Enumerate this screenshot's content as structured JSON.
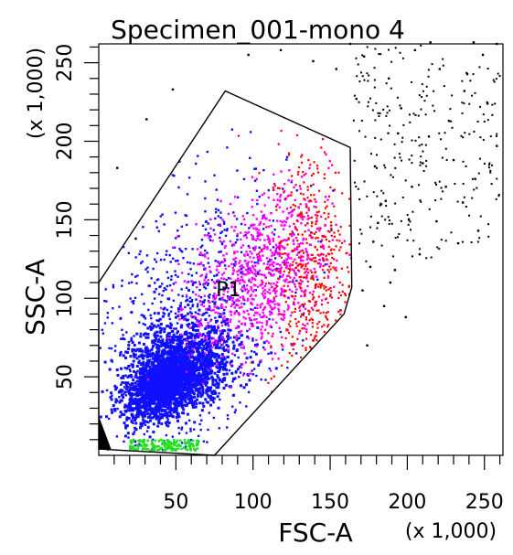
{
  "chart_data": {
    "type": "scatter",
    "title": "Specimen_001-mono 4",
    "xlabel": "FSC-A",
    "ylabel": "SSC-A",
    "x_multiplier_label": "(x 1,000)",
    "y_multiplier_label": "(x 1,000)",
    "xlim": [
      0,
      262
    ],
    "ylim": [
      0,
      262
    ],
    "x_ticks": [
      50,
      100,
      150,
      200,
      250
    ],
    "y_ticks": [
      50,
      100,
      150,
      200,
      250
    ],
    "x_tick_labels": [
      "50",
      "100",
      "150",
      "200",
      "250"
    ],
    "y_tick_labels": [
      "50",
      "100",
      "150",
      "200",
      "250"
    ],
    "minor_tick_step": 10,
    "grid": false,
    "gate": {
      "name": "P1",
      "label_position": [
        76,
        106
      ],
      "polygon": [
        [
          0,
          4
        ],
        [
          0,
          110
        ],
        [
          82,
          232
        ],
        [
          163,
          196
        ],
        [
          164,
          107
        ],
        [
          159,
          90
        ],
        [
          75,
          0
        ]
      ]
    },
    "series": [
      {
        "color": "#000000",
        "region": "outside gate, upper right",
        "points": [
          [
            172,
            254
          ],
          [
            188,
            240
          ],
          [
            205,
            258
          ],
          [
            221,
            246
          ],
          [
            237,
            232
          ],
          [
            249,
            255
          ],
          [
            196,
            221
          ],
          [
            214,
            203
          ],
          [
            230,
            188
          ],
          [
            244,
            176
          ],
          [
            258,
            197
          ],
          [
            179,
            184
          ],
          [
            186,
            162
          ],
          [
            203,
            171
          ],
          [
            219,
            149
          ],
          [
            233,
            135
          ],
          [
            208,
            128
          ],
          [
            192,
            118
          ],
          [
            178,
            136
          ],
          [
            171,
            105
          ],
          [
            185,
            95
          ],
          [
            199,
            88
          ],
          [
            174,
            70
          ],
          [
            181,
            148
          ],
          [
            227,
            213
          ],
          [
            252,
            224
          ],
          [
            236,
            161
          ],
          [
            167,
            227
          ],
          [
            154,
            246
          ],
          [
            139,
            251
          ],
          [
            118,
            258
          ],
          [
            97,
            255
          ],
          [
            31,
            214
          ],
          [
            48,
            233
          ],
          [
            12,
            183
          ],
          [
            24,
            138
          ],
          [
            194,
            205
          ],
          [
            210,
            186
          ],
          [
            225,
            171
          ],
          [
            246,
            143
          ],
          [
            201,
            150
          ],
          [
            189,
            110
          ],
          [
            176,
            120
          ],
          [
            163,
            262
          ],
          [
            258,
            262
          ],
          [
            243,
            263
          ],
          [
            215,
            263
          ]
        ]
      },
      {
        "color": "#1010ff",
        "region": "dense low-FSC core population",
        "points": []
      },
      {
        "color": "#ff00ff",
        "region": "mid cluster around P1",
        "points": []
      },
      {
        "color": "#ff0000",
        "region": "high-FSC band inside gate",
        "points": []
      },
      {
        "color": "#22dd22",
        "region": "bottom-left near axis",
        "points": []
      }
    ]
  }
}
